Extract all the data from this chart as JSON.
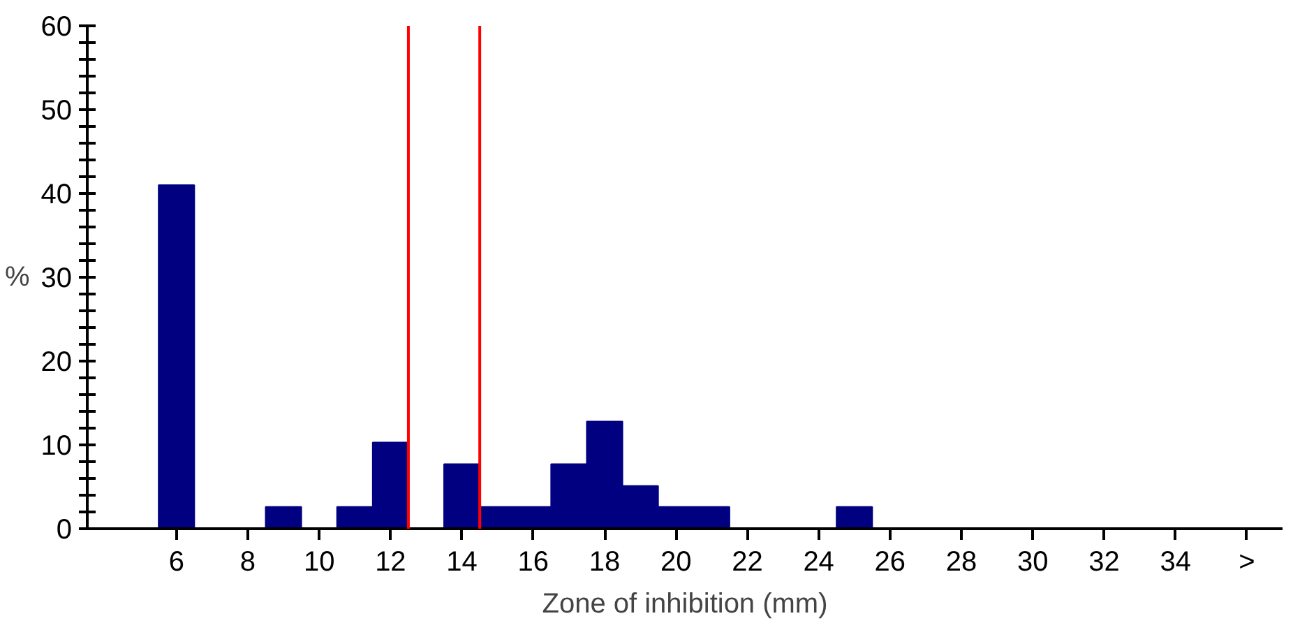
{
  "chart_data": {
    "type": "bar",
    "xlabel": "Zone of inhibition (mm)",
    "ylabel": "%",
    "x": [
      6,
      9,
      11,
      12,
      14,
      15,
      16,
      17,
      18,
      19,
      20,
      21,
      25
    ],
    "values": [
      41,
      2.6,
      2.6,
      10.3,
      7.7,
      2.6,
      2.6,
      7.7,
      12.8,
      5.1,
      2.6,
      2.6,
      2.6
    ],
    "color": "#000080",
    "xlim": [
      3.5,
      37
    ],
    "ylim": [
      0,
      60
    ],
    "xticks": [
      6,
      8,
      10,
      12,
      14,
      16,
      18,
      20,
      22,
      24,
      26,
      28,
      30,
      32,
      34,
      {
        "value": 36,
        "label": ">"
      }
    ],
    "yticks": [
      0,
      {
        "value": 2,
        "label": null
      },
      {
        "value": 4,
        "label": null
      },
      {
        "value": 6,
        "label": null
      },
      {
        "value": 8,
        "label": null
      },
      10,
      {
        "value": 12,
        "label": null
      },
      {
        "value": 14,
        "label": null
      },
      {
        "value": 16,
        "label": null
      },
      {
        "value": 18,
        "label": null
      },
      20,
      {
        "value": 22,
        "label": null
      },
      {
        "value": 24,
        "label": null
      },
      {
        "value": 26,
        "label": null
      },
      {
        "value": 28,
        "label": null
      },
      30,
      {
        "value": 32,
        "label": null
      },
      {
        "value": 34,
        "label": null
      },
      {
        "value": 36,
        "label": null
      },
      {
        "value": 38,
        "label": null
      },
      40,
      {
        "value": 42,
        "label": null
      },
      {
        "value": 44,
        "label": null
      },
      {
        "value": 46,
        "label": null
      },
      {
        "value": 48,
        "label": null
      },
      50,
      {
        "value": 52,
        "label": null
      },
      {
        "value": 54,
        "label": null
      },
      {
        "value": 56,
        "label": null
      },
      {
        "value": 58,
        "label": null
      },
      60
    ],
    "ref_lines": [
      {
        "axis": "x",
        "value": 12.5,
        "color": "#ff0000"
      },
      {
        "axis": "x",
        "value": 14.5,
        "color": "#ff0000"
      }
    ],
    "grid": false
  }
}
